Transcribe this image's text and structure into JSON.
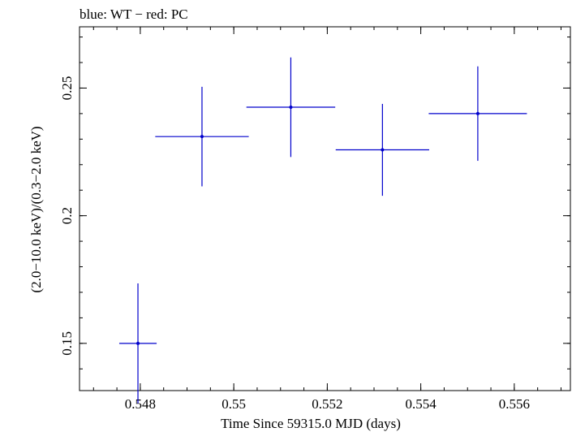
{
  "chart_data": {
    "type": "scatter",
    "title": "blue: WT − red: PC",
    "xlabel": "Time Since 59315.0 MJD (days)",
    "ylabel": "(2.0−10.0 keV)/(0.3−2.0 keV)",
    "xlim": [
      0.5467,
      0.5572
    ],
    "ylim": [
      0.1315,
      0.274
    ],
    "x_major_ticks": [
      0.548,
      0.55,
      0.552,
      0.554,
      0.556
    ],
    "x_tick_labels": [
      "0.548",
      "0.55",
      "0.552",
      "0.554",
      "0.556"
    ],
    "x_minor_step": 0.0005,
    "y_major_ticks": [
      0.15,
      0.2,
      0.25
    ],
    "y_tick_labels": [
      "0.15",
      "0.2",
      "0.25"
    ],
    "y_minor_step": 0.01,
    "series": [
      {
        "name": "WT",
        "color": "#0000cc",
        "points": [
          {
            "x": 0.54795,
            "y": 0.15,
            "xerr": 0.0004,
            "yerr": 0.0235
          },
          {
            "x": 0.54932,
            "y": 0.231,
            "xerr": 0.001,
            "yerr": 0.0195
          },
          {
            "x": 0.55122,
            "y": 0.2425,
            "xerr": 0.00095,
            "yerr": 0.0195
          },
          {
            "x": 0.55318,
            "y": 0.2258,
            "xerr": 0.001,
            "yerr": 0.018
          },
          {
            "x": 0.55522,
            "y": 0.24,
            "xerr": 0.00105,
            "yerr": 0.0185
          }
        ]
      }
    ]
  }
}
